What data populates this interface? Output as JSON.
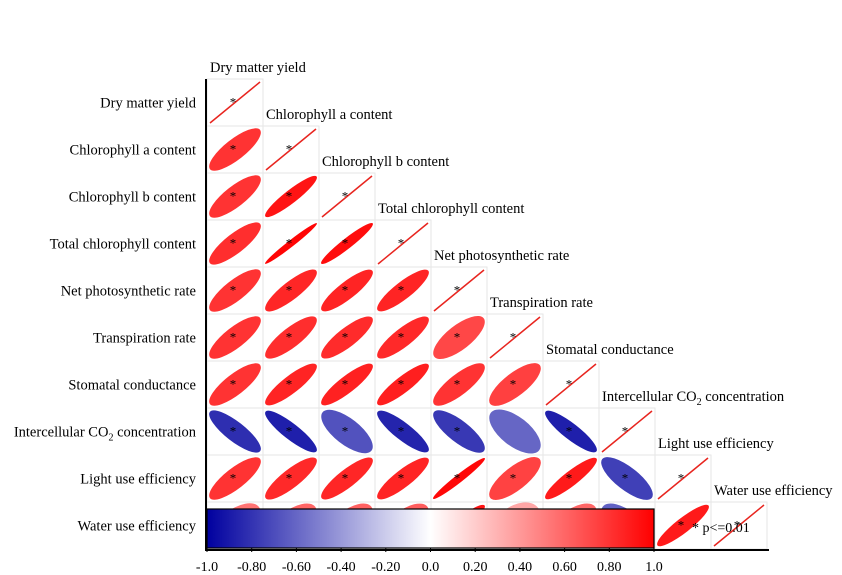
{
  "chart_data": {
    "type": "heatmap",
    "variables": [
      "Dry matter yield",
      "Chlorophyll a content",
      "Chlorophyll b content",
      "Total chlorophyll content",
      "Net photosynthetic rate",
      "Transpiration rate",
      "Stomatal conductance",
      "Intercellular CO2 concentration",
      "Light use efficiency",
      "Water use efficiency"
    ],
    "co2_label": {
      "base": "Intercellular CO",
      "sub": "2",
      "tail": " concentration"
    },
    "matrix": [
      [
        1.0,
        0.8,
        0.8,
        0.82,
        0.8,
        0.8,
        0.8,
        -0.82,
        0.8,
        0.55
      ],
      [
        0.8,
        1.0,
        0.92,
        0.98,
        0.85,
        0.82,
        0.86,
        -0.88,
        0.84,
        0.6
      ],
      [
        0.8,
        0.92,
        1.0,
        0.95,
        0.86,
        0.83,
        0.87,
        -0.68,
        0.85,
        0.62
      ],
      [
        0.82,
        0.98,
        0.95,
        1.0,
        0.86,
        0.84,
        0.88,
        -0.86,
        0.86,
        0.63
      ],
      [
        0.8,
        0.85,
        0.86,
        0.86,
        1.0,
        0.72,
        0.8,
        -0.78,
        0.97,
        0.92
      ],
      [
        0.8,
        0.82,
        0.83,
        0.84,
        0.72,
        1.0,
        0.75,
        -0.6,
        0.74,
        0.35
      ],
      [
        0.8,
        0.86,
        0.87,
        0.88,
        0.8,
        0.75,
        1.0,
        -0.88,
        0.9,
        0.6
      ],
      [
        -0.82,
        -0.88,
        -0.68,
        -0.86,
        -0.78,
        -0.6,
        -0.88,
        1.0,
        -0.75,
        -0.62
      ],
      [
        0.8,
        0.84,
        0.85,
        0.86,
        0.97,
        0.74,
        0.9,
        -0.75,
        1.0,
        0.9
      ],
      [
        0.55,
        0.6,
        0.62,
        0.63,
        0.92,
        0.35,
        0.6,
        -0.62,
        0.9,
        1.0
      ]
    ],
    "significant": [
      [
        true,
        true,
        true,
        true,
        true,
        true,
        true,
        true,
        true,
        false
      ],
      [
        true,
        true,
        true,
        true,
        true,
        true,
        true,
        true,
        true,
        false
      ],
      [
        true,
        true,
        true,
        true,
        true,
        true,
        true,
        true,
        true,
        false
      ],
      [
        true,
        true,
        true,
        true,
        true,
        true,
        true,
        true,
        true,
        false
      ],
      [
        true,
        true,
        true,
        true,
        true,
        true,
        true,
        true,
        true,
        true
      ],
      [
        true,
        true,
        true,
        true,
        true,
        true,
        true,
        false,
        true,
        false
      ],
      [
        true,
        true,
        true,
        true,
        true,
        true,
        true,
        true,
        true,
        false
      ],
      [
        true,
        true,
        true,
        true,
        true,
        false,
        true,
        true,
        true,
        false
      ],
      [
        true,
        true,
        true,
        true,
        true,
        true,
        true,
        true,
        true,
        true
      ],
      [
        false,
        false,
        false,
        false,
        true,
        false,
        false,
        false,
        true,
        true
      ]
    ],
    "colorbar": {
      "min": -1.0,
      "max": 1.0,
      "ticks": [
        "-1.0",
        "-0.80",
        "-0.60",
        "-0.40",
        "-0.20",
        "0.0",
        "0.20",
        "0.40",
        "0.60",
        "0.80",
        "1.0"
      ],
      "colors": {
        "negative": "#00009f",
        "middle": "#ffffff",
        "positive": "#ff0000"
      }
    },
    "significance_note": "* p<=0.01",
    "star_symbol": "*",
    "diagonal_color": "#e8251f"
  }
}
